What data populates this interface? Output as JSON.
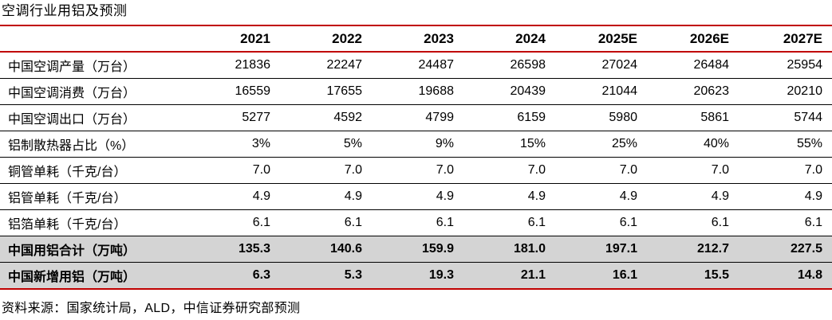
{
  "title": "空调行业用铝及预测",
  "source": "资料来源：国家统计局，ALD，中信证券研究部预测",
  "colors": {
    "accent_red": "#C00000",
    "highlight_gray": "#D4D4D4",
    "text": "#000000",
    "background": "#FFFFFF"
  },
  "chart_data": {
    "type": "table",
    "title": "空调行业用铝及预测",
    "columns": [
      "",
      "2021",
      "2022",
      "2023",
      "2024",
      "2025E",
      "2026E",
      "2027E"
    ],
    "rows": [
      {
        "label": "中国空调产量（万台）",
        "values": [
          "21836",
          "22247",
          "24487",
          "26598",
          "27024",
          "26484",
          "25954"
        ],
        "highlight": false
      },
      {
        "label": "中国空调消费（万台）",
        "values": [
          "16559",
          "17655",
          "19688",
          "20439",
          "21044",
          "20623",
          "20210"
        ],
        "highlight": false
      },
      {
        "label": "中国空调出口（万台）",
        "values": [
          "5277",
          "4592",
          "4799",
          "6159",
          "5980",
          "5861",
          "5744"
        ],
        "highlight": false
      },
      {
        "label": "铝制散热器占比（%）",
        "values": [
          "3%",
          "5%",
          "9%",
          "15%",
          "25%",
          "40%",
          "55%"
        ],
        "highlight": false
      },
      {
        "label": "铜管单耗（千克/台）",
        "values": [
          "7.0",
          "7.0",
          "7.0",
          "7.0",
          "7.0",
          "7.0",
          "7.0"
        ],
        "highlight": false
      },
      {
        "label": "铝管单耗（千克/台）",
        "values": [
          "4.9",
          "4.9",
          "4.9",
          "4.9",
          "4.9",
          "4.9",
          "4.9"
        ],
        "highlight": false
      },
      {
        "label": "铝箔单耗（千克/台）",
        "values": [
          "6.1",
          "6.1",
          "6.1",
          "6.1",
          "6.1",
          "6.1",
          "6.1"
        ],
        "highlight": false
      },
      {
        "label": "中国用铝合计（万吨）",
        "values": [
          "135.3",
          "140.6",
          "159.9",
          "181.0",
          "197.1",
          "212.7",
          "227.5"
        ],
        "highlight": true
      },
      {
        "label": "中国新增用铝（万吨）",
        "values": [
          "6.3",
          "5.3",
          "19.3",
          "21.1",
          "16.1",
          "15.5",
          "14.8"
        ],
        "highlight": true
      }
    ]
  }
}
